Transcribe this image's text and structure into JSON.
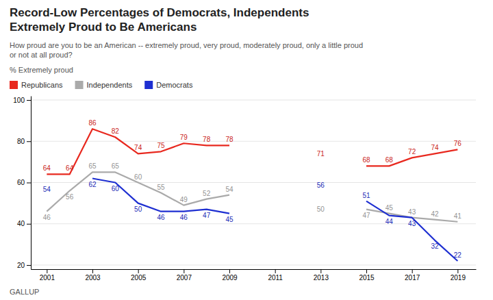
{
  "chart_data": {
    "type": "line",
    "title": "Record-Low Percentages of Democrats, Independents\nExtremely Proud to Be Americans",
    "subtitle": "How proud are you to be an American -- extremely proud, very proud, moderately proud, only a little proud\nor not at all proud?",
    "y_label": "% Extremely proud",
    "annotations": [
      "GALLUP"
    ],
    "x": [
      2001,
      2002,
      2003,
      2004,
      2005,
      2006,
      2007,
      2008,
      2009,
      2010,
      2011,
      2012,
      2013,
      2014,
      2015,
      2016,
      2017,
      2018,
      2019
    ],
    "series": [
      {
        "name": "Republicans",
        "color": "#e8281e",
        "values": [
          64,
          64,
          86,
          82,
          74,
          75,
          79,
          78,
          78,
          null,
          null,
          null,
          71,
          null,
          68,
          68,
          72,
          74,
          76
        ]
      },
      {
        "name": "Independents",
        "color": "#aaaaaa",
        "values": [
          46,
          56,
          65,
          65,
          60,
          55,
          49,
          52,
          54,
          null,
          null,
          null,
          50,
          null,
          47,
          45,
          43,
          42,
          41
        ]
      },
      {
        "name": "Democrats",
        "color": "#1e2fd1",
        "values": [
          54,
          null,
          62,
          60,
          50,
          46,
          46,
          47,
          45,
          null,
          null,
          null,
          56,
          null,
          51,
          44,
          43,
          32,
          22
        ]
      }
    ],
    "xlim": [
      2000.3,
      2019.8
    ],
    "xticks": [
      2001,
      2003,
      2005,
      2007,
      2009,
      2011,
      2013,
      2015,
      2017,
      2019
    ],
    "ylim": [
      18,
      102
    ],
    "yticks": [
      20,
      40,
      60,
      80,
      100
    ],
    "grid": true,
    "legend": "top",
    "data_labels": true
  }
}
